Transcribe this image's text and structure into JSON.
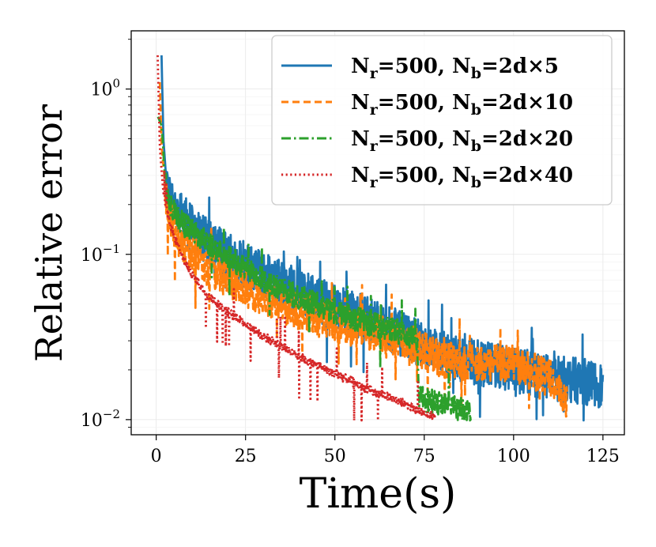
{
  "chart_data": {
    "type": "line",
    "title": "",
    "xlabel": "Time(s)",
    "ylabel": "Relative error",
    "yscale": "log",
    "xlim": [
      -7,
      131
    ],
    "ylim": [
      0.0081,
      2.25
    ],
    "xticks": [
      0,
      25,
      50,
      75,
      100,
      125
    ],
    "xtick_labels": [
      "0",
      "25",
      "50",
      "75",
      "100",
      "125"
    ],
    "yticks": [
      0.01,
      0.1,
      1
    ],
    "ytick_labels": [
      {
        "base": "10",
        "exp": "−2"
      },
      {
        "base": "10",
        "exp": "−1"
      },
      {
        "base": "10",
        "exp": "0"
      }
    ],
    "grid": true,
    "legend_position": "top-right",
    "series": [
      {
        "name": "Nr=500, Nb=2d×5",
        "legend": {
          "a": "N",
          "a_sub": "r",
          "b": "=500, ",
          "c": "N",
          "c_sub": "b",
          "d": "=2d×5"
        },
        "color": "#1f77b4",
        "style": "solid",
        "noise": 0.32,
        "x": [
          1.5,
          2,
          3,
          5,
          8,
          12,
          20,
          30,
          40,
          50,
          60,
          70,
          75,
          80,
          90,
          100,
          110,
          120,
          125
        ],
        "y": [
          1.6,
          0.5,
          0.25,
          0.19,
          0.16,
          0.13,
          0.1,
          0.075,
          0.06,
          0.048,
          0.04,
          0.032,
          0.028,
          0.025,
          0.022,
          0.02,
          0.018,
          0.017,
          0.016
        ]
      },
      {
        "name": "Nr=500, Nb=2d×10",
        "legend": {
          "a": "N",
          "a_sub": "r",
          "b": "=500, ",
          "c": "N",
          "c_sub": "b",
          "d": "=2d×10"
        },
        "color": "#ff7f0e",
        "style": "dashed",
        "noise": 0.26,
        "x": [
          1,
          1.5,
          3,
          5,
          8,
          12,
          20,
          30,
          40,
          50,
          60,
          70,
          75,
          80,
          90,
          100,
          110,
          115
        ],
        "y": [
          1.1,
          0.45,
          0.2,
          0.14,
          0.11,
          0.09,
          0.07,
          0.055,
          0.045,
          0.038,
          0.034,
          0.03,
          0.026,
          0.023,
          0.022,
          0.022,
          0.018,
          0.012
        ]
      },
      {
        "name": "Nr=500, Nb=2d×20",
        "legend": {
          "a": "N",
          "a_sub": "r",
          "b": "=500, ",
          "c": "N",
          "c_sub": "b",
          "d": "=2d×20"
        },
        "color": "#2ca02c",
        "style": "dashdot",
        "noise": 0.17,
        "x": [
          0.5,
          1.5,
          3,
          5,
          8,
          12,
          20,
          30,
          40,
          50,
          60,
          70,
          73,
          73.5,
          76,
          80,
          85,
          88
        ],
        "y": [
          0.68,
          0.6,
          0.22,
          0.18,
          0.15,
          0.13,
          0.095,
          0.07,
          0.055,
          0.045,
          0.038,
          0.033,
          0.03,
          0.014,
          0.013,
          0.0125,
          0.0115,
          0.011
        ]
      },
      {
        "name": "Nr=500, Nb=2d×40",
        "legend": {
          "a": "N",
          "a_sub": "r",
          "b": "=500, ",
          "c": "N",
          "c_sub": "b",
          "d": "=2d×40"
        },
        "color": "#d62728",
        "style": "dotted",
        "noise": 0.06,
        "x": [
          0.4,
          1,
          2,
          4,
          7,
          10,
          15,
          20,
          30,
          40,
          50,
          60,
          70,
          73,
          75,
          78
        ],
        "y": [
          1.6,
          0.45,
          0.23,
          0.15,
          0.1,
          0.075,
          0.055,
          0.045,
          0.032,
          0.024,
          0.019,
          0.015,
          0.0125,
          0.0115,
          0.011,
          0.0105
        ]
      }
    ]
  }
}
